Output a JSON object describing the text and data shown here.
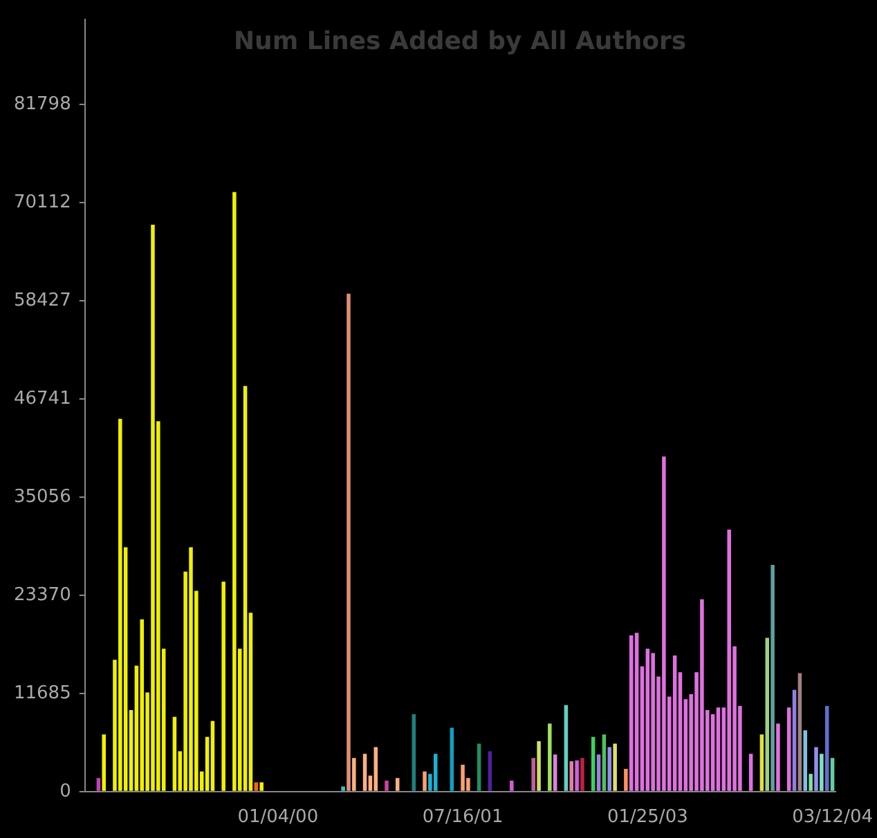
{
  "chart_data": {
    "type": "bar",
    "title": "Num Lines Added by All Authors",
    "categories": [
      null,
      null,
      null,
      null,
      null,
      null,
      null,
      null,
      null,
      null,
      null,
      null,
      null,
      null,
      null,
      null,
      null,
      null,
      null,
      null,
      null,
      null,
      null,
      null,
      null,
      null,
      null,
      null,
      null,
      null,
      null,
      null,
      null,
      null,
      null,
      "01/04/00",
      null,
      null,
      null,
      null,
      null,
      null,
      null,
      null,
      null,
      null,
      null,
      null,
      null,
      null,
      null,
      null,
      null,
      null,
      null,
      null,
      null,
      null,
      null,
      null,
      null,
      null,
      null,
      null,
      null,
      null,
      null,
      null,
      null,
      "07/16/01",
      null,
      null,
      null,
      null,
      null,
      null,
      null,
      null,
      null,
      null,
      null,
      null,
      null,
      null,
      null,
      null,
      null,
      null,
      null,
      null,
      null,
      null,
      null,
      null,
      null,
      null,
      null,
      null,
      null,
      null,
      null,
      null,
      null,
      "01/25/03",
      null,
      null,
      null,
      null,
      null,
      null,
      null,
      null,
      null,
      null,
      null,
      null,
      null,
      null,
      null,
      null,
      null,
      null,
      null,
      null,
      null,
      null,
      null,
      null,
      null,
      null,
      null,
      null,
      null,
      null,
      null,
      null,
      null,
      "03/12/04"
    ],
    "values": [
      null,
      null,
      1600,
      6800,
      null,
      15700,
      44400,
      29100,
      9700,
      15000,
      20500,
      11800,
      67500,
      44100,
      17000,
      null,
      8900,
      4800,
      26200,
      29100,
      23900,
      2400,
      6500,
      8400,
      null,
      25000,
      null,
      71400,
      17000,
      48300,
      21300,
      1100,
      1100,
      null,
      null,
      null,
      null,
      null,
      null,
      null,
      null,
      null,
      null,
      null,
      null,
      null,
      null,
      600,
      59300,
      4000,
      null,
      4500,
      1900,
      5300,
      null,
      1300,
      null,
      1600,
      null,
      null,
      9200,
      null,
      2400,
      2100,
      4500,
      null,
      null,
      7600,
      null,
      3200,
      1600,
      null,
      5700,
      null,
      4800,
      null,
      null,
      null,
      1300,
      null,
      null,
      null,
      4000,
      6000,
      null,
      8100,
      4400,
      null,
      10300,
      3600,
      3700,
      4000,
      null,
      6500,
      4400,
      6800,
      5300,
      5700,
      null,
      2700,
      18600,
      18900,
      14900,
      17000,
      16500,
      13700,
      39900,
      11300,
      16200,
      14200,
      11000,
      11600,
      14200,
      22900,
      9700,
      9200,
      10000,
      10000,
      31200,
      17300,
      10200,
      null,
      4500,
      null,
      6800,
      18300,
      27000,
      8100,
      null,
      10000,
      12100,
      14100,
      7300,
      2100,
      5300,
      4500,
      10200,
      4000
    ],
    "colors": [
      "#c040c0",
      "#c040c0",
      "#c040c0",
      "#f0f000",
      "#f0f000",
      "#f0f000",
      "#f0f000",
      "#f0f000",
      "#f0f000",
      "#f0f000",
      "#f0f000",
      "#f0f000",
      "#f0f000",
      "#f0f000",
      "#f0f000",
      "#f0f000",
      "#f0f000",
      "#f0f000",
      "#f0f000",
      "#f0f000",
      "#f0f000",
      "#f0f000",
      "#f0f000",
      "#f0f000",
      "#f0f000",
      "#f0f000",
      "#f0f000",
      "#f0f000",
      "#f0f000",
      "#f0f000",
      "#f0f000",
      "#ff6020",
      "#f0f000",
      "#f0f000",
      "#f0f000",
      "#f0f000",
      "#f0f000",
      "#f0f000",
      "#f0f000",
      "#f0f000",
      "#f0f000",
      "#f0f000",
      "#f0f000",
      "#f0f000",
      "#f0f000",
      "#f0f000",
      "#f0f000",
      "#40c0c0",
      "#e09070",
      "#ffb080",
      "#ffb080",
      "#ffb080",
      "#ffb080",
      "#ffb080",
      "#ffb080",
      "#d040a0",
      "#ffb080",
      "#ffb080",
      "#ffb080",
      "#ffb080",
      "#208080",
      "#208080",
      "#ffa070",
      "#20b0d0",
      "#20b0d0",
      "#20b0d0",
      "#20b0d0",
      "#10a0c0",
      "#ffa070",
      "#ffa070",
      "#ffa070",
      "#209060",
      "#209060",
      "#5020a0",
      "#5020a0",
      "#d060d0",
      "#d060d0",
      "#d060d0",
      "#d060d0",
      "#c060a0",
      "#c060a0",
      "#c060a0",
      "#c060a0",
      "#d0e060",
      "#a0e060",
      "#a0e060",
      "#e080e0",
      "#60d0c0",
      "#60d0c0",
      "#e080a0",
      "#d060e0",
      "#c02040",
      "#40d060",
      "#40d060",
      "#a080e0",
      "#50c060",
      "#9090f0",
      "#e0e060",
      "#ff9060",
      "#ff9060",
      "#e070e0",
      "#e070e0",
      "#e070e0",
      "#e070e0",
      "#e070e0",
      "#e070e0",
      "#e070e0",
      "#e070e0",
      "#e070e0",
      "#e070e0",
      "#e070e0",
      "#e070e0",
      "#e070e0",
      "#e070e0",
      "#e070e0",
      "#e070e0",
      "#e070e0",
      "#e070e0",
      "#e070e0",
      "#e070e0",
      "#e070e0",
      "#6070d0",
      "#e070e0",
      "#e070e0",
      "#e0e040",
      "#a0d080",
      "#60a0a0",
      "#e070e0",
      "#e070e0",
      "#e070e0",
      "#9080e0",
      "#a08080",
      "#80c0e0",
      "#80e0a0",
      "#9090f0",
      "#80e0c0",
      "#6070d0",
      "#60d0a0"
    ],
    "ylim": [
      0,
      92000
    ],
    "yticks": [
      0,
      11685,
      23370,
      35056,
      46741,
      58427,
      70112,
      81798
    ],
    "grid": false
  }
}
